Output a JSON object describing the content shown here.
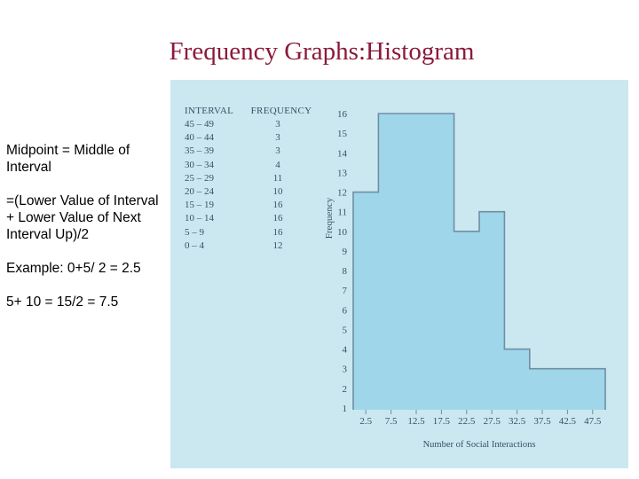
{
  "title": "Frequency Graphs:Histogram",
  "notes": [
    "Midpoint = Middle of Interval",
    "=(Lower Value of Interval + Lower Value of Next Interval Up)/2",
    "Example: 0+5/ 2 = 2.5",
    "5+ 10 = 15/2 = 7.5"
  ],
  "table": {
    "headers": [
      "INTERVAL",
      "FREQUENCY"
    ],
    "rows": [
      [
        "45 – 49",
        "3"
      ],
      [
        "40 – 44",
        "3"
      ],
      [
        "35 – 39",
        "3"
      ],
      [
        "30 – 34",
        "4"
      ],
      [
        "25 – 29",
        "11"
      ],
      [
        "20 – 24",
        "10"
      ],
      [
        "15 – 19",
        "16"
      ],
      [
        "10 – 14",
        "16"
      ],
      [
        "5 – 9",
        "16"
      ],
      [
        "0 – 4",
        "12"
      ]
    ]
  },
  "chart_data": {
    "type": "bar",
    "categories": [
      "2.5",
      "7.5",
      "12.5",
      "17.5",
      "22.5",
      "27.5",
      "32.5",
      "37.5",
      "42.5",
      "47.5"
    ],
    "values": [
      12,
      16,
      16,
      16,
      10,
      11,
      4,
      3,
      3,
      3
    ],
    "xlabel": "Number of Social Interactions",
    "ylabel": "Frequency",
    "ylim": [
      1,
      16
    ],
    "yticks": [
      "1",
      "2",
      "3",
      "4",
      "5",
      "6",
      "7",
      "8",
      "9",
      "10",
      "11",
      "12",
      "13",
      "14",
      "15",
      "16"
    ],
    "colors": {
      "fill": "#9fd6ea",
      "stroke": "#6f8fa3",
      "panel": "#cbe8f1",
      "text": "#3a4f63"
    }
  }
}
